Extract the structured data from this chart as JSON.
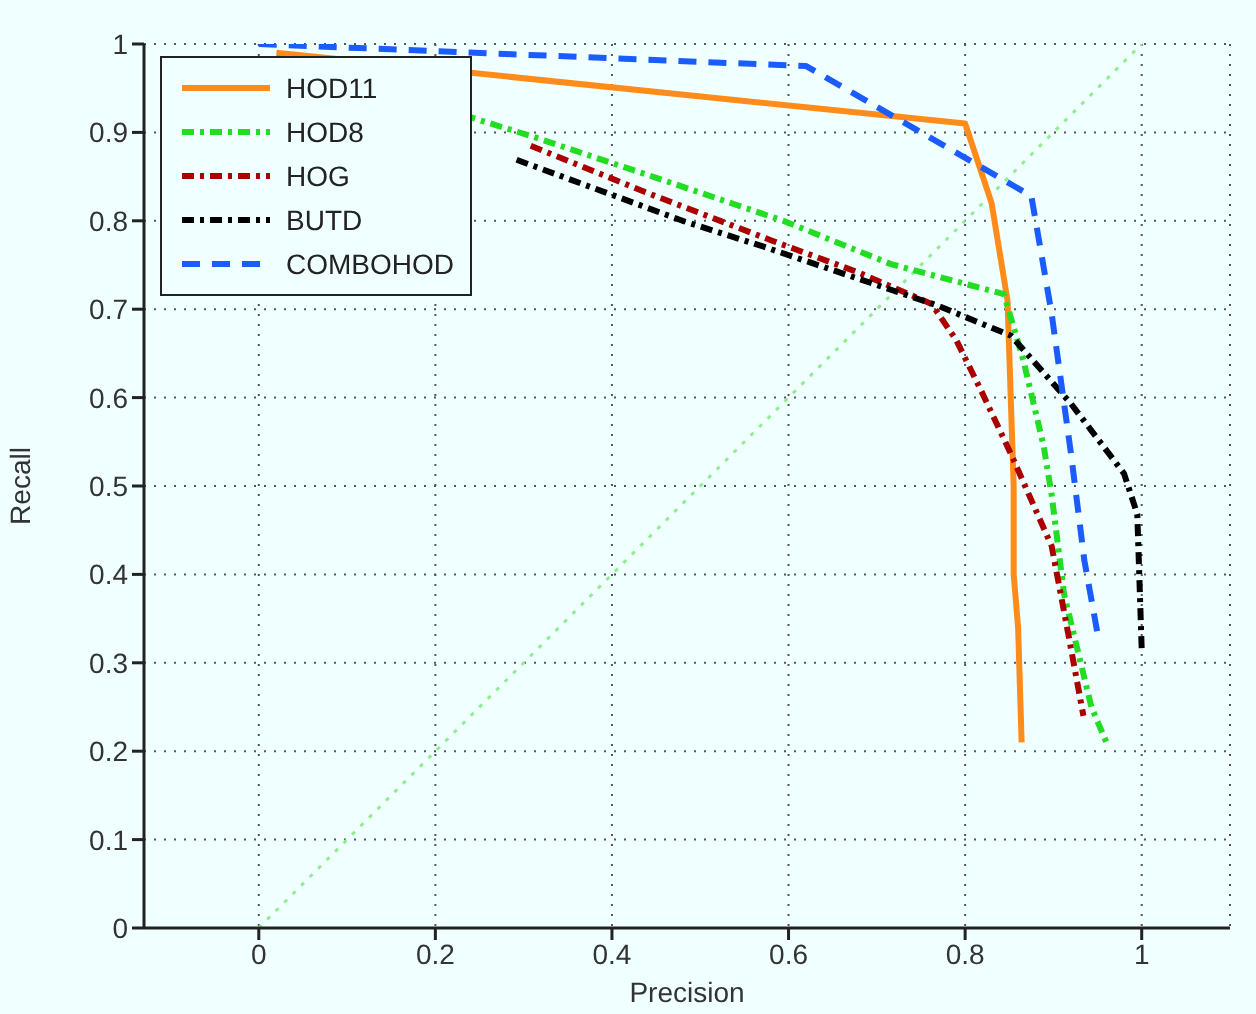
{
  "chart_data": {
    "type": "line",
    "xlabel": "Precision",
    "ylabel": "Recall",
    "xlim": [
      -0.13,
      1.1
    ],
    "xticks": [
      0,
      0.2,
      0.4,
      0.6,
      0.8,
      1
    ],
    "ylim": [
      0,
      1
    ],
    "yticks": [
      0,
      0.1,
      0.2,
      0.3,
      0.4,
      0.5,
      0.6,
      0.7,
      0.8,
      0.9,
      1
    ],
    "grid": true,
    "legend": "top left",
    "marker": "none",
    "series": [
      {
        "color": "#90ee90",
        "line_style": "dotted",
        "x": [
          0,
          1
        ],
        "values": [
          0,
          1
        ]
      },
      {
        "name": "HOD11",
        "color": "#ff8c1a",
        "line_style": "solid",
        "x": [
          0.02,
          0.8,
          0.83,
          0.848,
          0.855,
          0.855,
          0.86,
          0.864
        ],
        "values": [
          0.99,
          0.91,
          0.82,
          0.71,
          0.5,
          0.4,
          0.34,
          0.21
        ]
      },
      {
        "name": "HOD8",
        "color": "#22dd22",
        "line_style": "dashdot",
        "x": [
          0.02,
          0.308,
          0.458,
          0.594,
          0.716,
          0.844,
          0.866,
          0.889,
          0.898,
          0.912,
          0.943,
          0.96
        ],
        "values": [
          0.985,
          0.896,
          0.846,
          0.8,
          0.751,
          0.717,
          0.642,
          0.545,
          0.49,
          0.378,
          0.25,
          0.21
        ]
      },
      {
        "name": "HOG",
        "color": "#aa0000",
        "line_style": "dashdot",
        "x": [
          0.308,
          0.444,
          0.58,
          0.678,
          0.762,
          0.79,
          0.82,
          0.852,
          0.875,
          0.898,
          0.916,
          0.934
        ],
        "values": [
          0.885,
          0.83,
          0.778,
          0.742,
          0.706,
          0.665,
          0.604,
          0.536,
          0.484,
          0.432,
          0.337,
          0.24
        ]
      },
      {
        "name": "BUTD",
        "color": "#000000",
        "line_style": "dashdot",
        "x": [
          0.292,
          0.48,
          0.571,
          0.769,
          0.852,
          0.92,
          0.98,
          0.995,
          1.0
        ],
        "values": [
          0.869,
          0.8,
          0.771,
          0.704,
          0.67,
          0.593,
          0.514,
          0.468,
          0.315
        ]
      },
      {
        "name": "COMBOHOD",
        "color": "#1a5cff",
        "line_style": "dashed",
        "x": [
          0,
          0.62,
          0.875,
          0.898,
          0.92,
          0.935,
          0.95
        ],
        "values": [
          1.0,
          0.975,
          0.828,
          0.695,
          0.536,
          0.416,
          0.333
        ]
      }
    ]
  }
}
